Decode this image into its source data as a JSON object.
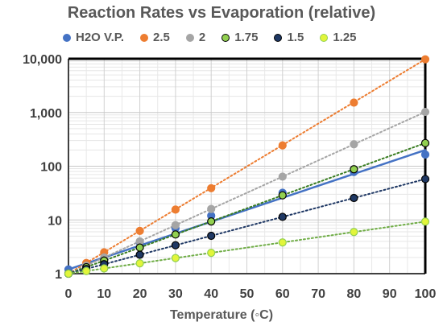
{
  "chart_data": {
    "type": "scatter",
    "title": "Reaction Rates vs Evaporation (relative)",
    "xlabel": "Temperature (◦C)",
    "ylabel": "",
    "xlim": [
      0,
      100
    ],
    "ylim": [
      1,
      10000
    ],
    "yscale": "log",
    "x_ticks": [
      "0",
      "10",
      "20",
      "30",
      "40",
      "50",
      "60",
      "70",
      "80",
      "90",
      "100"
    ],
    "y_ticks": [
      "1",
      "10",
      "100",
      "1,000",
      "10,000"
    ],
    "grid": true,
    "legend_position": "top",
    "series": [
      {
        "name": "H2O V.P.",
        "color": "#4472c4",
        "stroke": "#4472c4",
        "line": "solid",
        "trend": [
          1.2,
          200
        ],
        "x": [
          0,
          5,
          10,
          20,
          30,
          40,
          60,
          80,
          100
        ],
        "y": [
          1.2,
          1.4,
          1.9,
          3.8,
          7.0,
          12,
          32,
          78,
          165
        ]
      },
      {
        "name": "2.5",
        "color": "#ed7d31",
        "stroke": "#ed7d31",
        "line": "dotted",
        "trend": [
          1,
          9766
        ],
        "x": [
          0,
          5,
          10,
          20,
          30,
          40,
          60,
          80,
          100
        ],
        "y": [
          1,
          1.58,
          2.5,
          6.25,
          15.6,
          39,
          244,
          1526,
          9766
        ]
      },
      {
        "name": "2",
        "color": "#a5a5a5",
        "stroke": "#a5a5a5",
        "line": "dotted",
        "trend": [
          1,
          1024
        ],
        "x": [
          0,
          5,
          10,
          20,
          30,
          40,
          60,
          80,
          100
        ],
        "y": [
          1,
          1.41,
          2,
          4,
          8,
          16,
          64,
          256,
          1024
        ]
      },
      {
        "name": "1.75",
        "color": "#92d050",
        "stroke": "#000000",
        "line": "dotted",
        "trend": [
          1,
          270
        ],
        "x": [
          0,
          5,
          10,
          20,
          30,
          40,
          60,
          80,
          100
        ],
        "y": [
          1,
          1.32,
          1.75,
          3.06,
          5.36,
          9.38,
          28.7,
          87.9,
          269
        ]
      },
      {
        "name": "1.5",
        "color": "#1f3864",
        "stroke": "#000000",
        "line": "dotted",
        "trend": [
          1,
          57.7
        ],
        "x": [
          0,
          5,
          10,
          20,
          30,
          40,
          60,
          80,
          100
        ],
        "y": [
          1,
          1.22,
          1.5,
          2.25,
          3.38,
          5.06,
          11.4,
          25.6,
          57.7
        ]
      },
      {
        "name": "1.25",
        "color": "#e2f53a",
        "stroke": "#92d050",
        "line": "dotted",
        "trend": [
          1,
          9.31
        ],
        "x": [
          0,
          5,
          10,
          20,
          30,
          40,
          60,
          80,
          100
        ],
        "y": [
          1,
          1.12,
          1.25,
          1.56,
          1.95,
          2.44,
          3.81,
          5.96,
          9.31
        ]
      }
    ]
  }
}
